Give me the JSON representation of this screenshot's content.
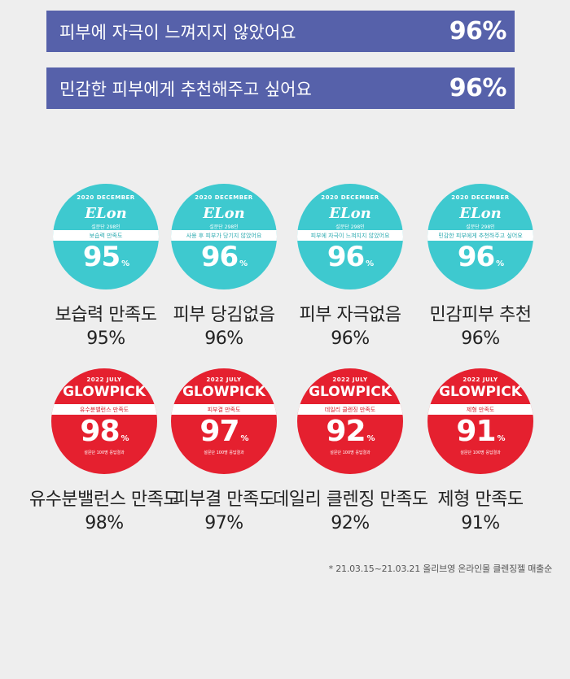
{
  "bars": [
    {
      "text": "피부에 자극이 느껴지지 않았어요",
      "pct": "96%"
    },
    {
      "text": "민감한 피부에게 추천해주고 싶어요",
      "pct": "96%"
    }
  ],
  "teal_badges": [
    {
      "top": "2020 DECEMBER",
      "logo": "ELon",
      "small": "설문단 298인",
      "band": "보습력 만족도",
      "num": "95",
      "pc": "%",
      "label": "보습력 만족도",
      "value": "95%"
    },
    {
      "top": "2020 DECEMBER",
      "logo": "ELon",
      "small": "설문단 298인",
      "band": "사용 후 피부가 당기지 않았어요",
      "num": "96",
      "pc": "%",
      "label": "피부 당김없음",
      "value": "96%"
    },
    {
      "top": "2020 DECEMBER",
      "logo": "ELon",
      "small": "설문단 298인",
      "band": "피부에 자극이 느껴지지 않았어요",
      "num": "96",
      "pc": "%",
      "label": "피부 자극없음",
      "value": "96%"
    },
    {
      "top": "2020 DECEMBER",
      "logo": "ELon",
      "small": "설문단 298인",
      "band": "민감한 피부에게 추천하주고 싶어요",
      "num": "96",
      "pc": "%",
      "label": "민감피부 추천",
      "value": "96%"
    }
  ],
  "red_badges": [
    {
      "top": "2022 JULY",
      "logo": "GLOWPICK",
      "band": "유수분밸런스 만족도",
      "num": "98",
      "pc": "%",
      "foot": "설문단 100명 응답결과",
      "label": "유수분밸런스 만족도",
      "value": "98%"
    },
    {
      "top": "2022 JULY",
      "logo": "GLOWPICK",
      "band": "피부결 만족도",
      "num": "97",
      "pc": "%",
      "foot": "설문단 100명 응답결과",
      "label": "피부결 만족도",
      "value": "97%"
    },
    {
      "top": "2022 JULY",
      "logo": "GLOWPICK",
      "band": "데일리 클렌징 만족도",
      "num": "92",
      "pc": "%",
      "foot": "설문단 100명 응답결과",
      "label": "데일리 클렌징 만족도",
      "value": "92%"
    },
    {
      "top": "2022 JULY",
      "logo": "GLOWPICK",
      "band": "제형 만족도",
      "num": "91",
      "pc": "%",
      "foot": "설문단 100명 응답결과",
      "label": "제형 만족도",
      "value": "91%"
    }
  ],
  "footnote": "* 21.03.15~21.03.21 올리브영 온라인몰 클렌징젤 매출순"
}
